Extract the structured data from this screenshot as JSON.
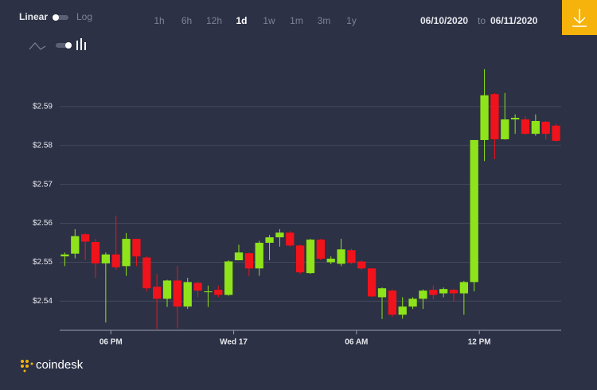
{
  "ui": {
    "scale_linear": "Linear",
    "scale_log": "Log",
    "ranges": [
      "1h",
      "6h",
      "12h",
      "1d",
      "1w",
      "1m",
      "3m",
      "1y"
    ],
    "active_range": "1d",
    "date_from": "06/10/2020",
    "date_sep": "to",
    "date_to": "06/11/2020",
    "brand": "coindesk"
  },
  "chart_data": {
    "type": "candlestick",
    "categories": [
      null,
      null,
      null,
      null,
      null,
      null,
      null,
      null,
      null,
      null,
      null,
      null,
      null,
      null,
      null,
      null,
      null,
      null,
      null,
      null,
      null,
      null,
      null,
      null,
      null,
      null,
      null,
      null,
      null,
      null,
      null,
      null,
      null,
      null,
      null,
      null,
      null,
      null,
      null,
      null,
      null,
      null,
      null,
      null,
      null,
      null,
      null,
      null,
      null
    ],
    "open": [
      2.5515,
      2.5522,
      2.5572,
      2.5552,
      2.5497,
      2.552,
      2.549,
      2.556,
      2.5512,
      2.5437,
      2.5406,
      2.5453,
      2.5386,
      2.5447,
      2.5423,
      2.5429,
      2.5416,
      2.5505,
      2.5523,
      2.5484,
      2.555,
      2.5564,
      2.5576,
      2.5543,
      2.5472,
      2.5558,
      2.55,
      2.5496,
      2.5531,
      2.5502,
      2.5484,
      2.541,
      2.5427,
      2.5365,
      2.5386,
      2.5406,
      2.5429,
      2.542,
      2.5429,
      2.542,
      2.5449,
      2.5814,
      2.5932,
      2.5816,
      2.5867,
      2.5867,
      2.583,
      2.5861,
      2.5851
    ],
    "high": [
      2.5525,
      2.5585,
      2.5575,
      2.556,
      2.5525,
      2.562,
      2.5575,
      2.556,
      2.5515,
      2.547,
      2.5455,
      2.549,
      2.546,
      2.545,
      2.544,
      2.544,
      2.5505,
      2.5545,
      2.5525,
      2.5555,
      2.557,
      2.5585,
      2.558,
      2.5545,
      2.556,
      2.556,
      2.5515,
      2.556,
      2.5535,
      2.5505,
      2.5485,
      2.5435,
      2.543,
      2.541,
      2.541,
      2.543,
      2.544,
      2.5435,
      2.5432,
      2.5452,
      2.5814,
      2.5996,
      2.5935,
      2.5935,
      2.588,
      2.5875,
      2.588,
      2.5863,
      2.5855
    ],
    "low": [
      2.549,
      2.551,
      2.5505,
      2.546,
      2.5345,
      2.548,
      2.5465,
      2.549,
      2.5425,
      2.5328,
      2.5385,
      2.533,
      2.538,
      2.541,
      2.5385,
      2.541,
      2.5414,
      2.5505,
      2.5465,
      2.5465,
      2.5505,
      2.554,
      2.554,
      2.547,
      2.547,
      2.5505,
      2.5495,
      2.549,
      2.5495,
      2.548,
      2.541,
      2.5354,
      2.536,
      2.5355,
      2.538,
      2.538,
      2.5405,
      2.541,
      2.54,
      2.5365,
      2.5425,
      2.576,
      2.5765,
      2.5815,
      2.583,
      2.5828,
      2.5825,
      2.5815,
      2.581
    ],
    "close": [
      2.552,
      2.5567,
      2.5553,
      2.5497,
      2.552,
      2.5487,
      2.556,
      2.5515,
      2.5433,
      2.5406,
      2.5453,
      2.5386,
      2.5449,
      2.5427,
      2.5425,
      2.5416,
      2.5502,
      2.5525,
      2.5484,
      2.555,
      2.5564,
      2.5576,
      2.5543,
      2.5474,
      2.5558,
      2.5509,
      2.5509,
      2.5533,
      2.5498,
      2.5484,
      2.5412,
      2.5433,
      2.5365,
      2.5386,
      2.5406,
      2.5427,
      2.5416,
      2.5431,
      2.542,
      2.5449,
      2.5814,
      2.5929,
      2.5816,
      2.5867,
      2.5871,
      2.583,
      2.5863,
      2.583,
      2.5812
    ],
    "up_color": "#8fe31a",
    "down_color": "#f0131b",
    "ylim": [
      2.5325,
      2.6
    ],
    "yticks": [
      {
        "value": 2.54,
        "label": "$2.54"
      },
      {
        "value": 2.55,
        "label": "$2.55"
      },
      {
        "value": 2.56,
        "label": "$2.56"
      },
      {
        "value": 2.57,
        "label": "$2.57"
      },
      {
        "value": 2.58,
        "label": "$2.58"
      },
      {
        "value": 2.59,
        "label": "$2.59"
      }
    ],
    "xticks": [
      {
        "value": 4.5,
        "label": "06 PM"
      },
      {
        "value": 16.5,
        "label": "Wed 17"
      },
      {
        "value": 28.5,
        "label": "06 AM"
      },
      {
        "value": 40.5,
        "label": "12 PM"
      }
    ],
    "grid": true
  }
}
